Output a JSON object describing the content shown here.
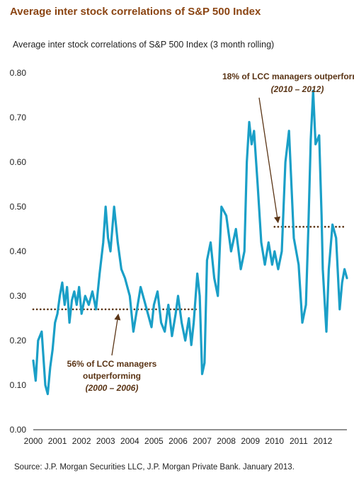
{
  "header": {
    "title": "Average inter stock correlations of S&P 500 Index",
    "subtitle": "Average inter stock correlations of S&P 500 Index (3 month rolling)"
  },
  "footer": {
    "source": "Source: J.P. Morgan Securities LLC, J.P. Morgan Private Bank. January 2013."
  },
  "chart_data": {
    "type": "line",
    "ylim": [
      0,
      0.8
    ],
    "xlim": [
      2000,
      2013
    ],
    "y_ticks": [
      "0.00",
      "0.10",
      "0.20",
      "0.30",
      "0.40",
      "0.50",
      "0.60",
      "0.70",
      "0.80"
    ],
    "x_ticks": [
      "2000",
      "2001",
      "2002",
      "2003",
      "2004",
      "2005",
      "2006",
      "2007",
      "2008",
      "2009",
      "2010",
      "2011",
      "2012"
    ],
    "colors": {
      "line": "#1A9FC7",
      "annotation": "#5a3415"
    },
    "series": [
      {
        "x": [
          2000.0,
          2000.1,
          2000.2,
          2000.35,
          2000.5,
          2000.6,
          2000.7,
          2000.8,
          2000.9,
          2001.0,
          2001.1,
          2001.2,
          2001.3,
          2001.4,
          2001.5,
          2001.6,
          2001.7,
          2001.8,
          2001.9,
          2002.0,
          2002.15,
          2002.3,
          2002.45,
          2002.6,
          2002.75,
          2002.9,
          2003.0,
          2003.1,
          2003.2,
          2003.35,
          2003.5,
          2003.65,
          2003.8,
          2004.0,
          2004.15,
          2004.3,
          2004.45,
          2004.6,
          2004.75,
          2004.9,
          2005.0,
          2005.15,
          2005.3,
          2005.45,
          2005.6,
          2005.75,
          2005.9,
          2006.0,
          2006.15,
          2006.3,
          2006.45,
          2006.55,
          2006.65,
          2006.8,
          2006.9,
          2007.0,
          2007.1,
          2007.2,
          2007.35,
          2007.5,
          2007.65,
          2007.8,
          2008.0,
          2008.2,
          2008.4,
          2008.6,
          2008.75,
          2008.85,
          2008.95,
          2009.05,
          2009.15,
          2009.3,
          2009.45,
          2009.6,
          2009.75,
          2009.9,
          2010.0,
          2010.15,
          2010.3,
          2010.45,
          2010.6,
          2010.7,
          2010.8,
          2010.9,
          2011.0,
          2011.15,
          2011.3,
          2011.4,
          2011.5,
          2011.6,
          2011.7,
          2011.85,
          2011.95,
          2012.0,
          2012.15,
          2012.25,
          2012.4,
          2012.55,
          2012.7,
          2012.8,
          2012.9,
          2013.0
        ],
        "y": [
          0.155,
          0.11,
          0.2,
          0.22,
          0.1,
          0.08,
          0.14,
          0.18,
          0.24,
          0.26,
          0.3,
          0.33,
          0.28,
          0.32,
          0.24,
          0.29,
          0.31,
          0.28,
          0.32,
          0.26,
          0.3,
          0.28,
          0.31,
          0.27,
          0.35,
          0.42,
          0.5,
          0.43,
          0.4,
          0.5,
          0.42,
          0.36,
          0.34,
          0.3,
          0.22,
          0.27,
          0.32,
          0.29,
          0.26,
          0.23,
          0.28,
          0.31,
          0.24,
          0.22,
          0.28,
          0.21,
          0.26,
          0.3,
          0.24,
          0.2,
          0.25,
          0.19,
          0.24,
          0.35,
          0.3,
          0.125,
          0.15,
          0.38,
          0.42,
          0.34,
          0.3,
          0.5,
          0.48,
          0.4,
          0.45,
          0.36,
          0.4,
          0.6,
          0.69,
          0.64,
          0.67,
          0.55,
          0.42,
          0.37,
          0.42,
          0.37,
          0.4,
          0.36,
          0.4,
          0.6,
          0.67,
          0.55,
          0.43,
          0.4,
          0.37,
          0.24,
          0.28,
          0.45,
          0.65,
          0.76,
          0.64,
          0.66,
          0.48,
          0.36,
          0.22,
          0.36,
          0.46,
          0.43,
          0.27,
          0.33,
          0.36,
          0.34
        ]
      }
    ],
    "reference_lines": [
      {
        "x": [
          2000.0,
          2006.85
        ],
        "y": 0.27
      },
      {
        "x": [
          2010.0,
          2012.95
        ],
        "y": 0.455
      }
    ],
    "annotations": [
      {
        "lines": [
          "18% of LCC managers outperforming",
          "(2010 – 2012)"
        ],
        "italic_line": 1,
        "arrow_to": [
          2010.15,
          0.455
        ]
      },
      {
        "lines": [
          "56% of LCC managers",
          "outperforming",
          "(2000 – 2006)"
        ],
        "italic_line": 2,
        "arrow_to": [
          2003.5,
          0.27
        ]
      }
    ]
  }
}
